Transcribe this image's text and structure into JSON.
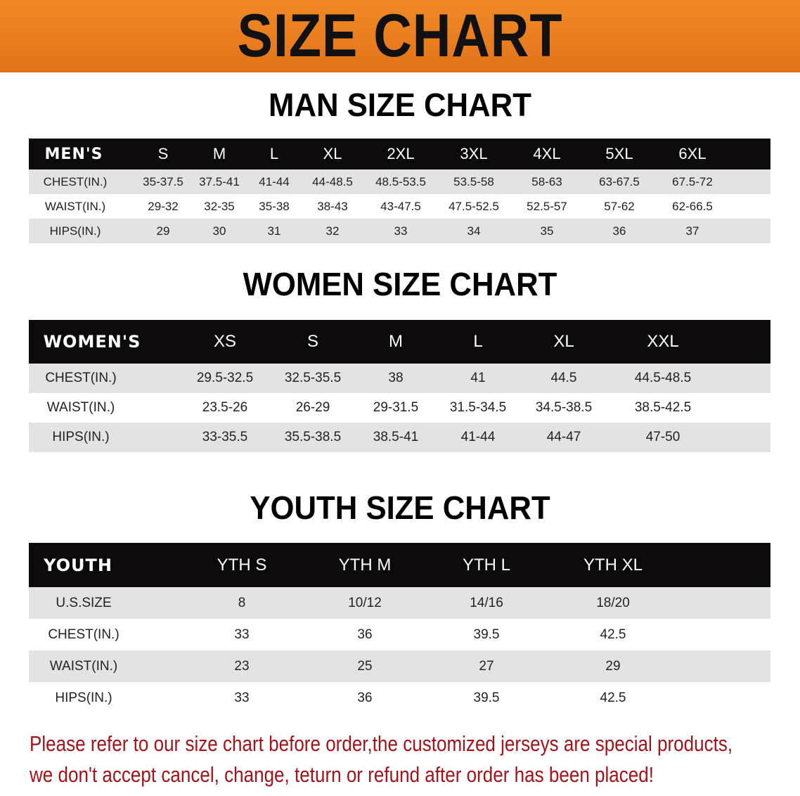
{
  "banner_title": "SIZE CHART",
  "colors": {
    "banner": "#e97d1f",
    "header_row": "#0c0a0a",
    "stripe": "#e3e3e3",
    "note": "#a3141a"
  },
  "men": {
    "title": "MAN SIZE CHART",
    "header": [
      "MEN'S",
      "S",
      "M",
      "L",
      "XL",
      "2XL",
      "3XL",
      "4XL",
      "5XL",
      "6XL"
    ],
    "rows": [
      [
        "CHEST(IN.)",
        "35-37.5",
        "37.5-41",
        "41-44",
        "44-48.5",
        "48.5-53.5",
        "53.5-58",
        "58-63",
        "63-67.5",
        "67.5-72"
      ],
      [
        "WAIST(IN.)",
        "29-32",
        "32-35",
        "35-38",
        "38-43",
        "43-47.5",
        "47.5-52.5",
        "52.5-57",
        "57-62",
        "62-66.5"
      ],
      [
        "HIPS(IN.)",
        "29",
        "30",
        "31",
        "32",
        "33",
        "34",
        "35",
        "36",
        "37"
      ]
    ]
  },
  "women": {
    "title": "WOMEN SIZE CHART",
    "header": [
      "WOMEN'S",
      "XS",
      "S",
      "M",
      "L",
      "XL",
      "XXL"
    ],
    "rows": [
      [
        "CHEST(IN.)",
        "29.5-32.5",
        "32.5-35.5",
        "38",
        "41",
        "44.5",
        "44.5-48.5"
      ],
      [
        "WAIST(IN.)",
        "23.5-26",
        "26-29",
        "29-31.5",
        "31.5-34.5",
        "34.5-38.5",
        "38.5-42.5"
      ],
      [
        "HIPS(IN.)",
        "33-35.5",
        "35.5-38.5",
        "38.5-41",
        "41-44",
        "44-47",
        "47-50"
      ]
    ]
  },
  "youth": {
    "title": "YOUTH SIZE CHART",
    "header": [
      "YOUTH",
      "YTH S",
      "YTH M",
      "YTH L",
      "YTH XL"
    ],
    "rows": [
      [
        "U.S.SIZE",
        "8",
        "10/12",
        "14/16",
        "18/20"
      ],
      [
        "CHEST(IN.)",
        "33",
        "36",
        "39.5",
        "42.5"
      ],
      [
        "WAIST(IN.)",
        "23",
        "25",
        "27",
        "29"
      ],
      [
        "HIPS(IN.)",
        "33",
        "36",
        "39.5",
        "42.5"
      ]
    ]
  },
  "note": {
    "line1": "Please refer to our size chart before order,the customized jerseys are special products,",
    "line2": "we don't accept cancel, change, teturn or refund after order has been placed!"
  }
}
